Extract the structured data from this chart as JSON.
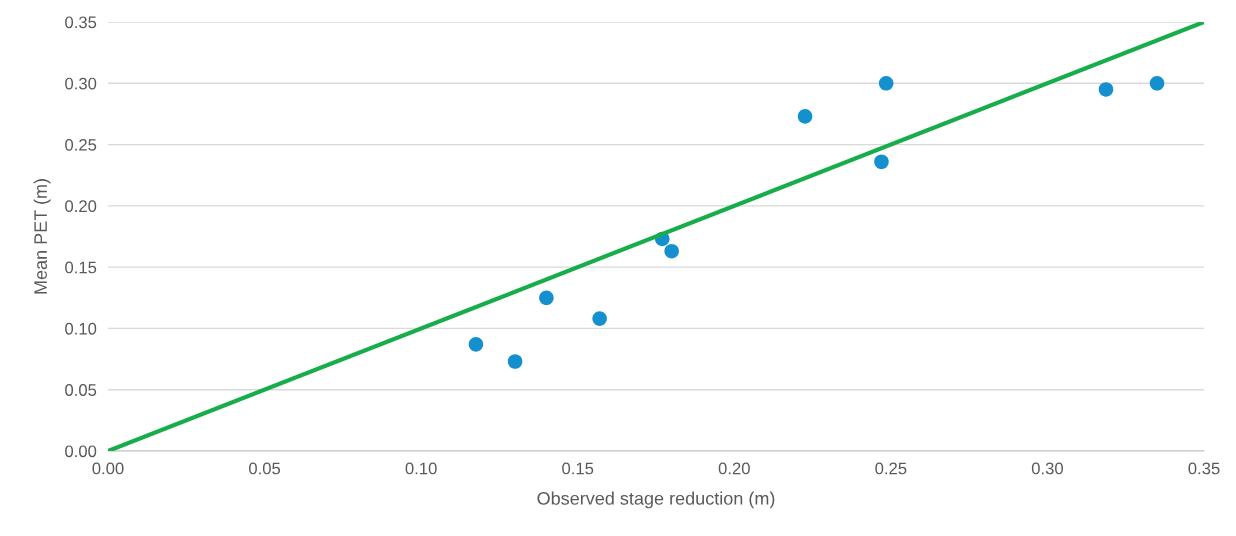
{
  "chart_data": {
    "type": "scatter",
    "xlabel": "Observed stage reduction (m)",
    "ylabel": "Mean PET (m)",
    "series": [
      {
        "color": "#1490cf",
        "x": [
          0.1175,
          0.13,
          0.14,
          0.157,
          0.177,
          0.18,
          0.2226,
          0.2485,
          0.247,
          0.3187,
          0.335
        ],
        "values": [
          0.087,
          0.073,
          0.125,
          0.108,
          0.173,
          0.163,
          0.273,
          0.3,
          0.236,
          0.295,
          0.3
        ]
      },
      {
        "type": "line",
        "color": "#16ad4a",
        "x": [
          0,
          0.35
        ],
        "values": [
          0,
          0.35
        ]
      }
    ],
    "xlim": [
      0,
      0.35
    ],
    "ylim": [
      0,
      0.35
    ],
    "xticks": [
      {
        "value": 0,
        "label": "0.00"
      },
      {
        "value": 0.05,
        "label": "0.05"
      },
      {
        "value": 0.1,
        "label": "0.10"
      },
      {
        "value": 0.15,
        "label": "0.15"
      },
      {
        "value": 0.2,
        "label": "0.20"
      },
      {
        "value": 0.25,
        "label": "0.25"
      },
      {
        "value": 0.3,
        "label": "0.30"
      },
      {
        "value": 0.35,
        "label": "0.35"
      }
    ],
    "yticks": [
      {
        "value": 0,
        "label": "0.00"
      },
      {
        "value": 0.05,
        "label": "0.05"
      },
      {
        "value": 0.1,
        "label": "0.10"
      },
      {
        "value": 0.15,
        "label": "0.15"
      },
      {
        "value": 0.2,
        "label": "0.20"
      },
      {
        "value": 0.25,
        "label": "0.25"
      },
      {
        "value": 0.3,
        "label": "0.30"
      },
      {
        "value": 0.35,
        "label": "0.35"
      }
    ],
    "grid": "y"
  }
}
